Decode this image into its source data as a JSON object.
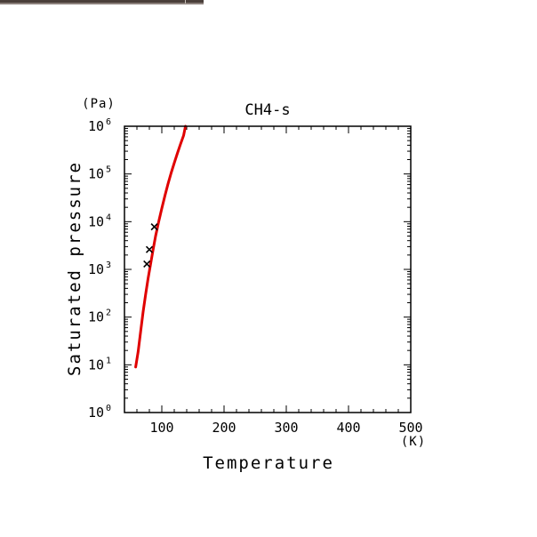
{
  "chart_data": {
    "type": "line",
    "title": "CH4-s",
    "xlabel": "Temperature",
    "ylabel": "Saturated pressure",
    "x_unit": "(K)",
    "y_unit": "(Pa)",
    "xlim": [
      40,
      500
    ],
    "ylim": [
      1,
      1000000
    ],
    "y_scale": "log",
    "x_ticks": [
      100,
      200,
      300,
      400,
      500
    ],
    "x_tick_labels": [
      "100",
      "200",
      "300",
      "400",
      "500"
    ],
    "y_ticks": [
      1,
      10,
      100,
      1000,
      10000,
      100000,
      1000000
    ],
    "y_tick_labels": [
      {
        "base": "10",
        "exp": "0"
      },
      {
        "base": "10",
        "exp": "1"
      },
      {
        "base": "10",
        "exp": "2"
      },
      {
        "base": "10",
        "exp": "3"
      },
      {
        "base": "10",
        "exp": "4"
      },
      {
        "base": "10",
        "exp": "5"
      },
      {
        "base": "10",
        "exp": "6"
      }
    ],
    "grid": false,
    "series": [
      {
        "kind": "line",
        "color": "#e00000",
        "x": [
          58,
          62,
          66,
          70,
          74,
          78,
          82,
          86,
          90,
          95,
          100,
          105,
          110,
          115,
          120,
          125,
          130,
          135,
          138
        ],
        "y": [
          9,
          19,
          50,
          130,
          300,
          650,
          1300,
          2600,
          5000,
          10000,
          19000,
          35000,
          62000,
          105000,
          170000,
          270000,
          420000,
          640000,
          1000000
        ]
      },
      {
        "kind": "scatter",
        "color": "#000000",
        "marker": "x",
        "x": [
          76,
          80,
          88
        ],
        "y": [
          1300,
          2600,
          7800
        ]
      }
    ]
  }
}
